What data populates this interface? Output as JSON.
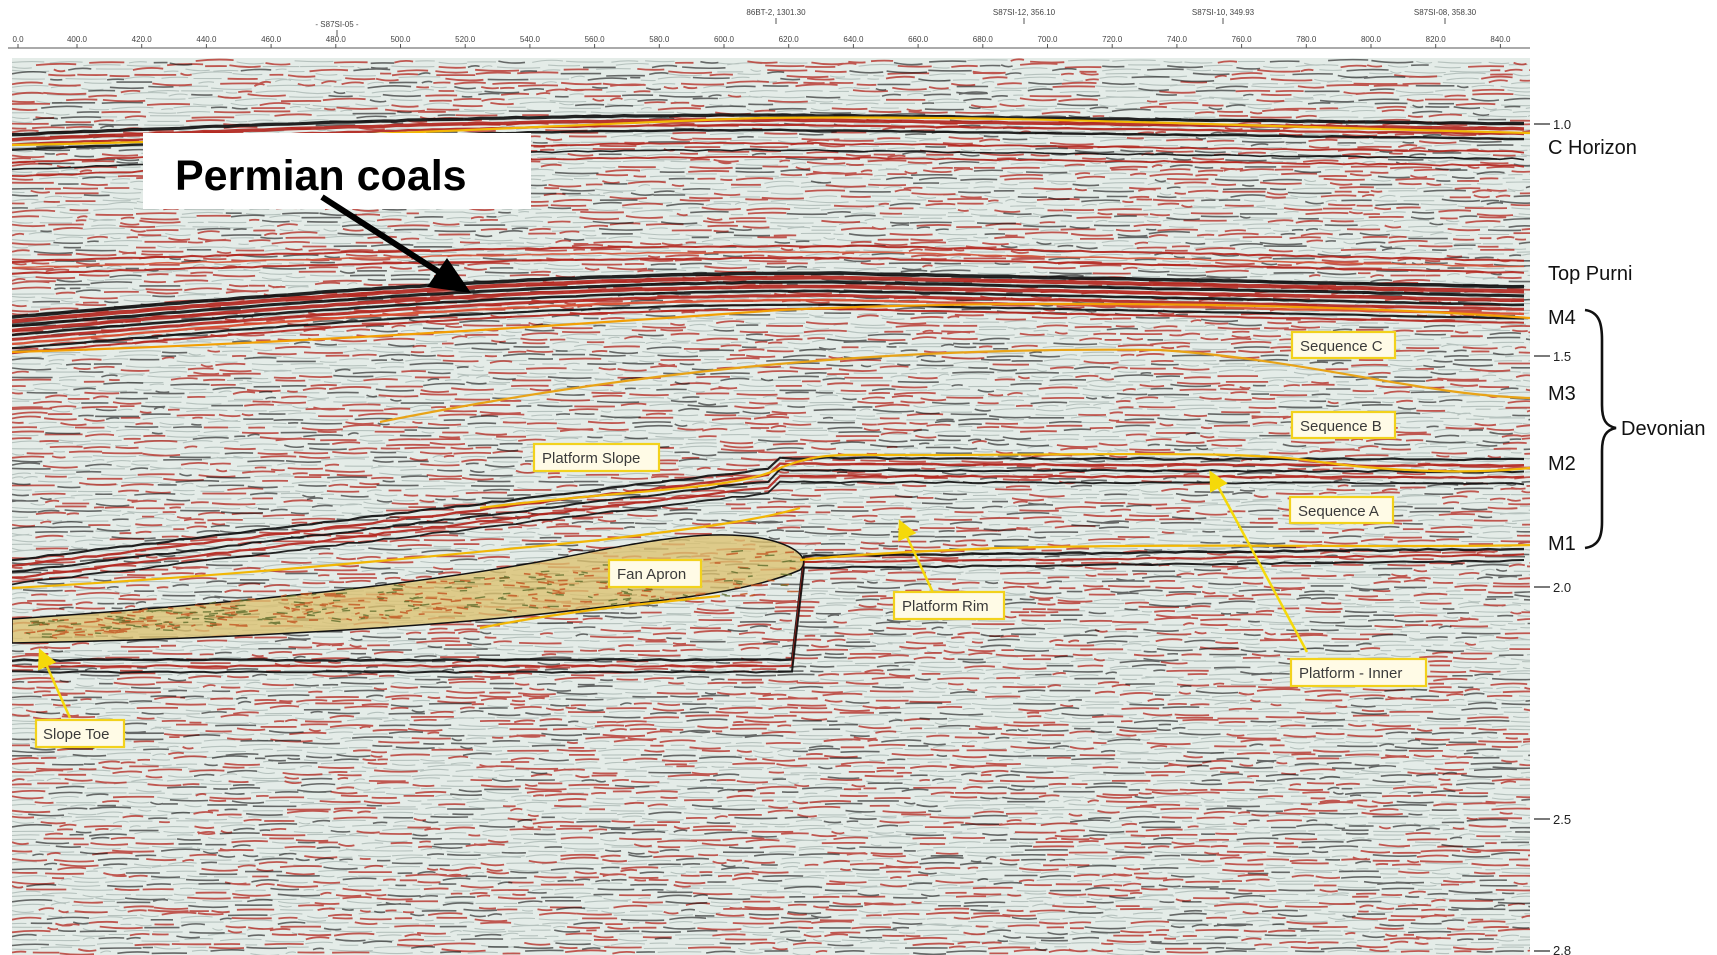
{
  "top_axis": {
    "ticks": [
      "0.0",
      "400.0",
      "420.0",
      "440.0",
      "460.0",
      "480.0",
      "500.0",
      "520.0",
      "540.0",
      "560.0",
      "580.0",
      "600.0",
      "620.0",
      "640.0",
      "660.0",
      "680.0",
      "700.0",
      "720.0",
      "740.0",
      "760.0",
      "780.0",
      "800.0",
      "820.0",
      "840.0"
    ],
    "wells": [
      "- S87SI-05 -",
      "86BT-2, 1301.30",
      "S87SI-12, 356.10",
      "S87SI-10, 349.93",
      "S87SI-08, 358.30"
    ]
  },
  "time_axis": [
    "1.0",
    "1.5",
    "2.0",
    "2.5",
    "2.8"
  ],
  "horizons": [
    "C Horizon",
    "Top Purni",
    "M4",
    "M3",
    "M2",
    "M1"
  ],
  "bracket_label": "Devonian",
  "title_box": "Permian coals",
  "callouts": [
    "Sequence C",
    "Sequence B",
    "Sequence A",
    "Platform Slope",
    "Fan Apron",
    "Platform Rim",
    "Platform - Inner",
    "Slope Toe"
  ],
  "colors": {
    "background_noise": "#e4ece8",
    "red_reflector": "#b3261e",
    "black_reflector": "#111111",
    "horizon_line": "#f2b705",
    "fan_fill": "#dcc170",
    "arrow_yellow": "#f5d90a"
  }
}
